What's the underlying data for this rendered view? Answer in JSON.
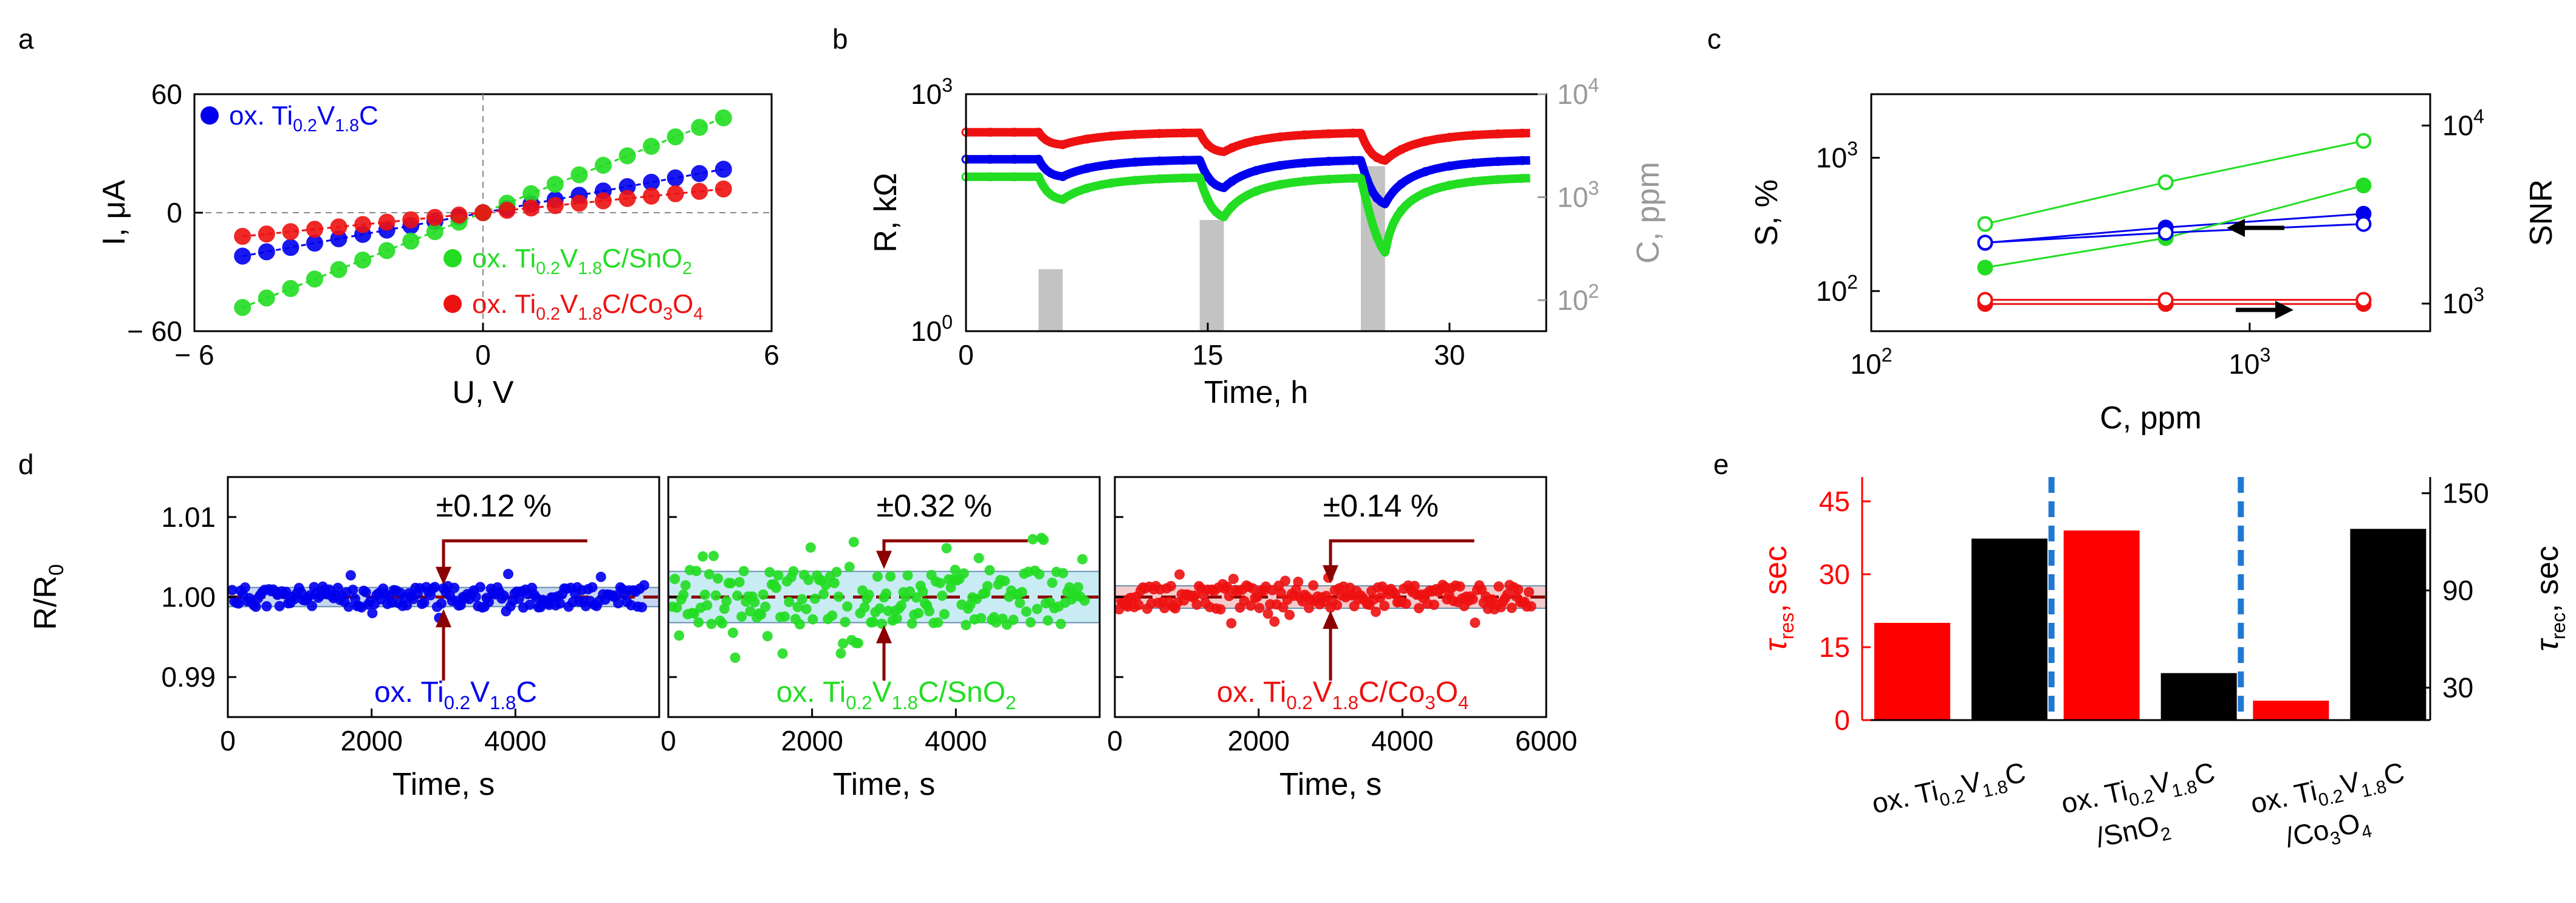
{
  "figure": {
    "panel_letters": [
      "a",
      "b",
      "c",
      "d",
      "e"
    ]
  },
  "chart_data": [
    {
      "id": "a",
      "type": "scatter",
      "xlabel": "U, V",
      "ylabel": "I, μA",
      "xlim": [
        -6,
        6
      ],
      "ylim": [
        -60,
        60
      ],
      "xticks": [
        -6,
        0,
        6
      ],
      "xtick_labels": [
        "− 6",
        "0",
        "6"
      ],
      "yticks": [
        -60,
        0,
        60
      ],
      "ytick_labels": [
        "− 60",
        "0",
        "60"
      ],
      "x": [
        -5,
        -4.5,
        -4,
        -3.5,
        -3,
        -2.5,
        -2,
        -1.5,
        -1,
        -0.5,
        0,
        0.5,
        1,
        1.5,
        2,
        2.5,
        3,
        3.5,
        4,
        4.5,
        5
      ],
      "series": [
        {
          "name": "ox. Ti0.2V1.8C",
          "label_parts": [
            "ox. Ti",
            "0.2",
            "V",
            "1.8",
            "C"
          ],
          "color": "#0000ee",
          "slope": 4.4
        },
        {
          "name": "ox. Ti0.2V1.8C/SnO2",
          "label_parts": [
            "ox. Ti",
            "0.2",
            "V",
            "1.8",
            "C/SnO",
            "2",
            ""
          ],
          "color": "#22dd22",
          "slope": 9.6
        },
        {
          "name": "ox. Ti0.2V1.8C/Co3O4",
          "label_parts": [
            "ox. Ti",
            "0.2",
            "V",
            "1.8",
            "C/Co",
            "3",
            "O",
            "4",
            ""
          ],
          "color": "#ee1111",
          "slope": 2.4
        }
      ]
    },
    {
      "id": "b",
      "type": "line",
      "xlabel": "Time, h",
      "ylabel": "R, kΩ",
      "y2label": "C, ppm",
      "xlim": [
        0,
        36
      ],
      "xticks": [
        0,
        15,
        30
      ],
      "ylim_log": [
        1,
        1000
      ],
      "yticks": [
        "10^0",
        "10^3"
      ],
      "y2lim_log": [
        50,
        10000
      ],
      "y2ticks": [
        "10^2",
        "10^3",
        "10^4"
      ],
      "pulses": [
        {
          "start": 4.5,
          "end": 6.0,
          "ppm": 200
        },
        {
          "start": 14.5,
          "end": 16.0,
          "ppm": 600
        },
        {
          "start": 24.5,
          "end": 26.0,
          "ppm": 2000
        }
      ],
      "series": [
        {
          "name": "ox. Ti0.2V1.8C/Co3O4",
          "color": "#ee1111",
          "baseline_kohm": 330,
          "drop_kohm": 140
        },
        {
          "name": "ox. Ti0.2V1.8C",
          "color": "#0000ee",
          "baseline_kohm": 150,
          "drop_kohm": 38
        },
        {
          "name": "ox. Ti0.2V1.8C/SnO2",
          "color": "#22dd22",
          "baseline_kohm": 90,
          "drop_kohm": 8
        }
      ]
    },
    {
      "id": "c",
      "type": "line",
      "xlabel": "C, ppm",
      "ylabel": "S, %",
      "y2label": "SNR",
      "xlim_log": [
        100,
        3000
      ],
      "xticks": [
        "10^2",
        "10^3"
      ],
      "ylim_log": [
        50,
        3000
      ],
      "yticks": [
        "10^2",
        "10^3"
      ],
      "y2lim_log": [
        700,
        15000
      ],
      "y2ticks": [
        "10^3",
        "10^4"
      ],
      "x": [
        200,
        600,
        2000
      ],
      "series": [
        {
          "name": "ox. Ti0.2V1.8C S",
          "color": "#0000ee",
          "marker": "filled",
          "values": [
            230,
            300,
            380
          ]
        },
        {
          "name": "ox. Ti0.2V1.8C/SnO2 S",
          "color": "#22dd22",
          "marker": "filled",
          "values": [
            150,
            250,
            620
          ]
        },
        {
          "name": "ox. Ti0.2V1.8C/Co3O4 S",
          "color": "#ee1111",
          "marker": "filled",
          "values": [
            80,
            80,
            80
          ]
        },
        {
          "name": "ox. Ti0.2V1.8C SNR",
          "color": "#0000ee",
          "marker": "open",
          "values": [
            2200,
            2500,
            2800
          ]
        },
        {
          "name": "ox. Ti0.2V1.8C/SnO2 SNR",
          "color": "#22dd22",
          "marker": "open",
          "values": [
            2800,
            4800,
            8200
          ]
        },
        {
          "name": "ox. Ti0.2V1.8C/Co3O4 SNR",
          "color": "#ee1111",
          "marker": "open",
          "values": [
            1050,
            1050,
            1050
          ]
        }
      ]
    },
    {
      "id": "d",
      "type": "scatter",
      "ylabel": "R/R",
      "ylabel_sub": "0",
      "ylim": [
        0.985,
        1.015
      ],
      "yticks": [
        0.99,
        1.0,
        1.01
      ],
      "ytick_labels": [
        "0.99",
        "1.00",
        "1.01"
      ],
      "subpanels": [
        {
          "xlabel": "Time, s",
          "xlim": [
            0,
            6000
          ],
          "xticks": [
            0,
            2000,
            4000
          ],
          "annotation": "±0.12 %",
          "band": 0.0012,
          "color": "#0000ee",
          "band_color": "#c7d6f3",
          "label_parts": [
            "ox. Ti",
            "0.2",
            "V",
            "1.8",
            "C"
          ]
        },
        {
          "xlabel": "Time, s",
          "xlim": [
            0,
            6000
          ],
          "xticks": [
            0,
            2000,
            4000
          ],
          "annotation": "±0.32 %",
          "band": 0.0032,
          "color": "#22dd22",
          "band_color": "#c9ecf4",
          "label_parts": [
            "ox. Ti",
            "0.2",
            "V",
            "1.8",
            "C/SnO",
            "2",
            ""
          ]
        },
        {
          "xlabel": "Time, s",
          "xlim": [
            0,
            6000
          ],
          "xticks": [
            0,
            2000,
            4000,
            6000
          ],
          "annotation": "±0.14 %",
          "band": 0.0014,
          "color": "#ee1111",
          "band_color": "#f4cccc",
          "label_parts": [
            "ox. Ti",
            "0.2",
            "V",
            "1.8",
            "C/Co",
            "3",
            "O",
            "4",
            ""
          ]
        }
      ]
    },
    {
      "id": "e",
      "type": "bar",
      "ylabel_main": "τ",
      "ylabel_sub": "res",
      "ylabel_unit": ", sec",
      "y2label_main": "τ",
      "y2label_sub": "rec",
      "y2label_unit": ", sec",
      "ylim": [
        0,
        50
      ],
      "yticks": [
        0,
        15,
        30,
        45
      ],
      "y2lim": [
        10,
        160
      ],
      "y2ticks": [
        30,
        90,
        150
      ],
      "categories": [
        {
          "line1_parts": [
            "ox. Ti",
            "0.2",
            "V",
            "1.8",
            "C"
          ],
          "line2_parts": []
        },
        {
          "line1_parts": [
            "ox. Ti",
            "0.2",
            "V",
            "1.8",
            "C"
          ],
          "line2_parts": [
            "/SnO",
            "2",
            ""
          ]
        },
        {
          "line1_parts": [
            "ox. Ti",
            "0.2",
            "V",
            "1.8",
            "C"
          ],
          "line2_parts": [
            "/Co",
            "3",
            "O",
            "4",
            ""
          ]
        }
      ],
      "tau_res": [
        20,
        39,
        4
      ],
      "tau_rec": [
        122,
        39,
        128
      ],
      "res_color": "#ff0000",
      "rec_color": "#000000",
      "divider_color": "#1f78d1"
    }
  ]
}
